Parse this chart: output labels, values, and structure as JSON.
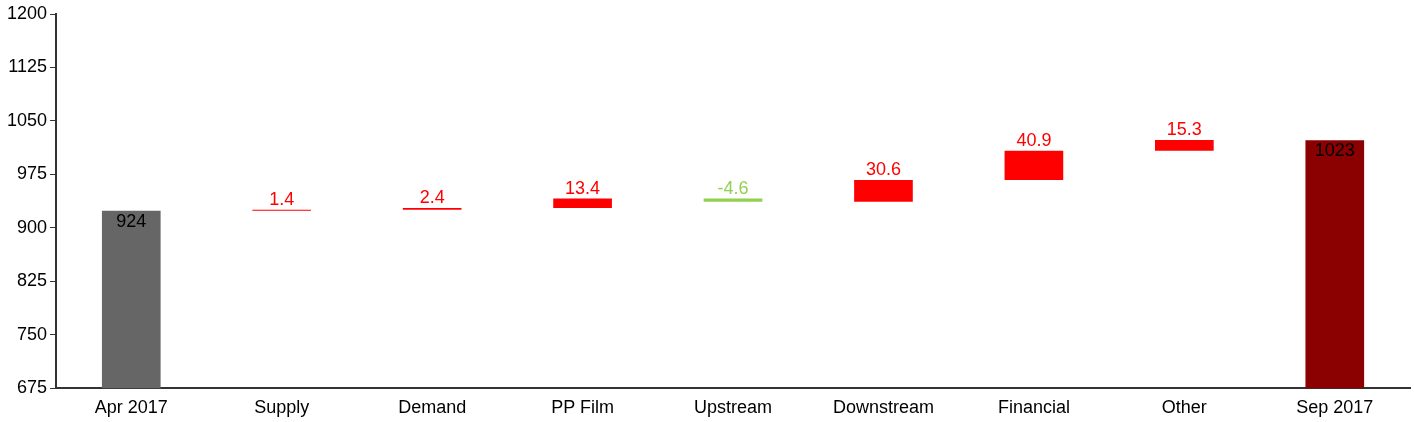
{
  "chart_data": {
    "type": "bar",
    "categories": [
      "Apr 2017",
      "Supply",
      "Demand",
      "PP Film",
      "Upstream",
      "Downstream",
      "Financial",
      "Other",
      "Sep 2017"
    ],
    "base": [
      675,
      924,
      925.4,
      927.8,
      941.2,
      936.6,
      967.2,
      1008.1,
      675
    ],
    "values": [
      249,
      1.4,
      2.4,
      13.4,
      -4.6,
      30.6,
      40.9,
      15.3,
      348
    ],
    "colors": [
      "#666666",
      "#ff0000",
      "#ff0000",
      "#ff0000",
      "#92d050",
      "#ff0000",
      "#ff0000",
      "#ff0000",
      "#8b0000"
    ],
    "value_labels": [
      "924",
      "1.4",
      "2.4",
      "13.4",
      "-4.6",
      "30.6",
      "40.9",
      "15.3",
      "1023"
    ],
    "ylim": [
      675,
      1200
    ],
    "yticks": [
      675,
      750,
      825,
      900,
      975,
      1050,
      1125,
      1200
    ],
    "grid": false,
    "legend": false
  }
}
